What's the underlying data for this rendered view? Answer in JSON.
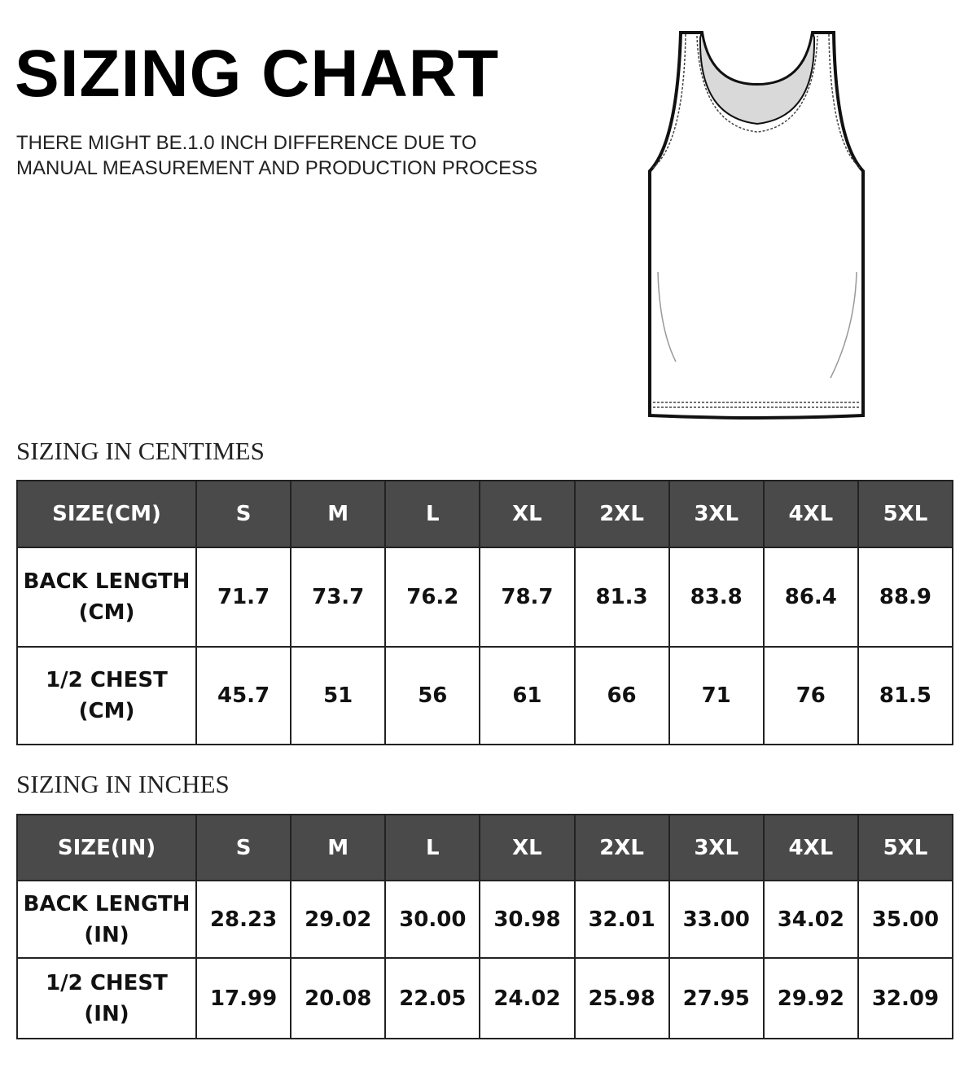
{
  "header": {
    "title": "SIZING CHART",
    "note": [
      "THERE MIGHT BE.1.0 INCH DIFFERENCE DUE TO",
      "MANUAL MEASUREMENT AND PRODUCTION PROCESS"
    ]
  },
  "tables": [
    {
      "heading": "SIZING IN CENTIMES",
      "columns": [
        "SIZE(CM)",
        "S",
        "M",
        "L",
        "XL",
        "2XL",
        "3XL",
        "4XL",
        "5XL"
      ],
      "rows": [
        [
          "BACK LENGTH\n(CM)",
          "71.7",
          "73.7",
          "76.2",
          "78.7",
          "81.3",
          "83.8",
          "86.4",
          "88.9"
        ],
        [
          "1/2 CHEST\n(CM)",
          "45.7",
          "51",
          "56",
          "61",
          "66",
          "71",
          "76",
          "81.5"
        ]
      ]
    },
    {
      "heading": "SIZING IN INCHES",
      "columns": [
        "SIZE(IN)",
        "S",
        "M",
        "L",
        "XL",
        "2XL",
        "3XL",
        "4XL",
        "5XL"
      ],
      "rows": [
        [
          "BACK LENGTH\n(IN)",
          "28.23",
          "29.02",
          "30.00",
          "30.98",
          "32.01",
          "33.00",
          "34.02",
          "35.00"
        ],
        [
          "1/2 CHEST\n(IN)",
          "17.99",
          "20.08",
          "22.05",
          "24.02",
          "25.98",
          "27.95",
          "29.92",
          "32.09"
        ]
      ]
    }
  ]
}
